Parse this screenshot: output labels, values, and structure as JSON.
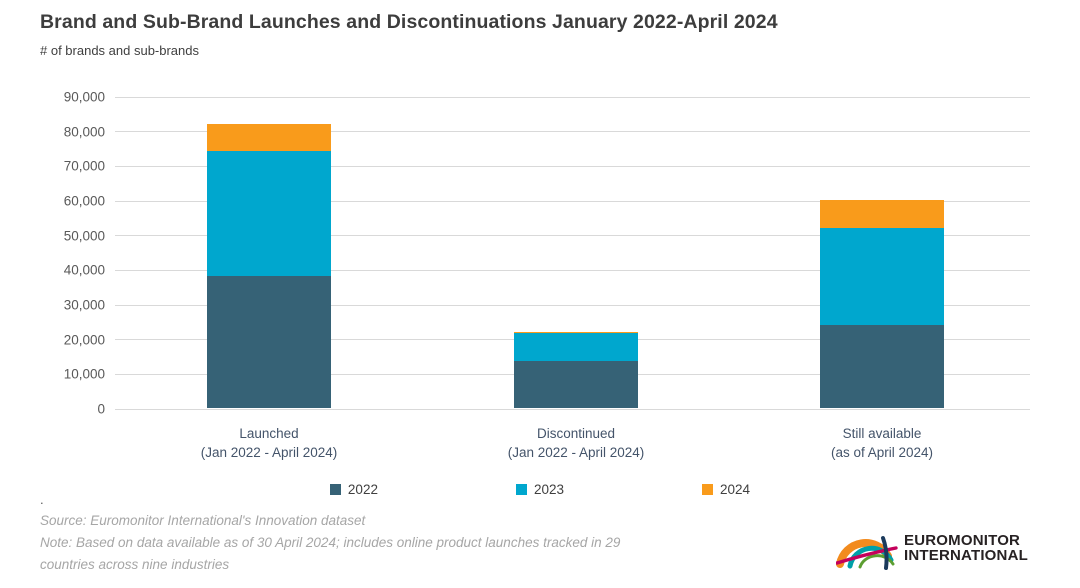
{
  "page": {
    "title": "Brand and Sub-Brand Launches and Discontinuations January 2022-April 2024",
    "subtitle": "# of brands and sub-brands",
    "stray_dot": ".",
    "source_line": "Source: Euromonitor International's Innovation dataset",
    "note_line1": "Note: Based on data available as of 30 April 2024; includes online product launches tracked in 29",
    "note_line2": "countries across nine industries"
  },
  "logo": {
    "line1": "EUROMONITOR",
    "line2": "INTERNATIONAL"
  },
  "colors": {
    "series_2022": "#366276",
    "series_2023": "#00a7ce",
    "series_2024": "#f99b1b",
    "gridline": "#d9d9d9",
    "title_text": "#3d3d3d",
    "tick_text": "#595959",
    "category_text": "#44546a",
    "footer_text": "#a6a6a6"
  },
  "chart_data": {
    "type": "bar",
    "stacked": true,
    "title": "Brand and Sub-Brand Launches and Discontinuations January 2022-April 2024",
    "ylabel": "# of brands and sub-brands",
    "categories": [
      {
        "line1": "Launched",
        "line2": "(Jan 2022 - April 2024)"
      },
      {
        "line1": "Discontinued",
        "line2": "(Jan 2022 - April 2024)"
      },
      {
        "line1": "Still available",
        "line2": "(as of April 2024)"
      }
    ],
    "series": [
      {
        "name": "2022",
        "color": "#366276",
        "values": [
          38000,
          13500,
          24000
        ]
      },
      {
        "name": "2023",
        "color": "#00a7ce",
        "values": [
          36000,
          8000,
          28000
        ]
      },
      {
        "name": "2024",
        "color": "#f99b1b",
        "values": [
          8000,
          500,
          8000
        ]
      }
    ],
    "stack_totals": [
      82000,
      22000,
      60000
    ],
    "ylim": [
      0,
      90000
    ],
    "ytick_step": 10000,
    "ytick_labels": [
      "0",
      "10,000",
      "20,000",
      "30,000",
      "40,000",
      "50,000",
      "60,000",
      "70,000",
      "80,000",
      "90,000"
    ],
    "grid": true,
    "legend_position": "bottom"
  }
}
